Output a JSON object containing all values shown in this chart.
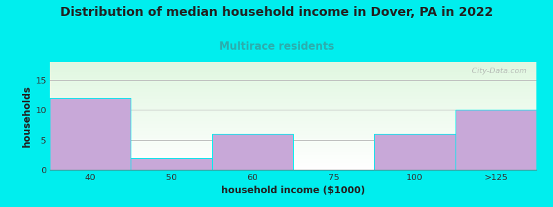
{
  "title": "Distribution of median household income in Dover, PA in 2022",
  "subtitle": "Multirace residents",
  "xlabel": "household income ($1000)",
  "ylabel": "households",
  "background_color": "#00EEEE",
  "bar_color": "#c8a8d8",
  "bar_edgecolor": "none",
  "categories": [
    "40",
    "50",
    "60",
    "75",
    "100",
    ">125"
  ],
  "values": [
    12,
    2,
    6,
    0,
    6,
    10
  ],
  "ylim": [
    0,
    18
  ],
  "yticks": [
    0,
    5,
    10,
    15
  ],
  "grid_color": "#bbbbbb",
  "title_fontsize": 13,
  "subtitle_fontsize": 11,
  "subtitle_color": "#2aaeae",
  "axis_label_fontsize": 10,
  "tick_fontsize": 9,
  "watermark": " City-Data.com",
  "plot_bg_top": "#e8f5e9",
  "plot_bg_bottom": "#ffffff",
  "title_color": "#222222"
}
